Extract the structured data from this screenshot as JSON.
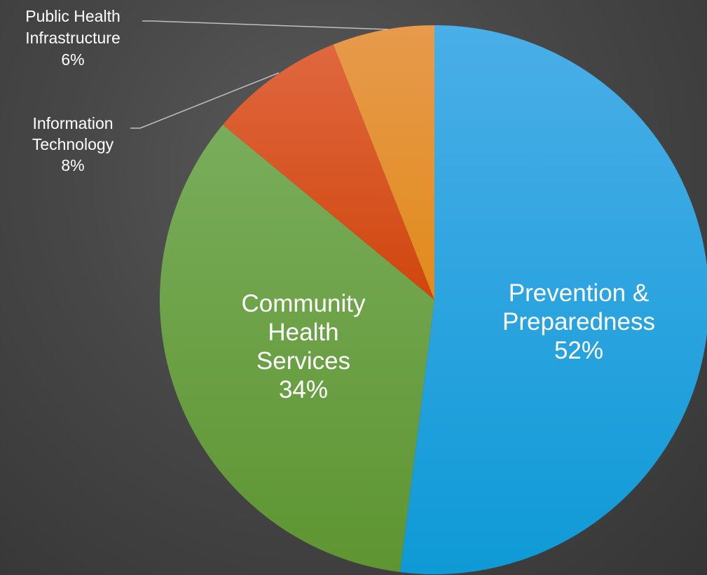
{
  "chart_data": {
    "type": "pie",
    "title": "",
    "start_angle_deg": 0,
    "direction": "clockwise",
    "slices": [
      {
        "lines": [
          "Prevention &",
          "Preparedness"
        ],
        "percent_label": "52%",
        "value": 52,
        "color_top": "#4aaee8",
        "color_bottom": "#0e9ad6"
      },
      {
        "lines": [
          "Community",
          "Health",
          "Services"
        ],
        "percent_label": "34%",
        "value": 34,
        "color_top": "#79ad5b",
        "color_bottom": "#5e9531"
      },
      {
        "lines": [
          "Information",
          "Technology"
        ],
        "percent_label": "8%",
        "value": 8,
        "color_top": "#e0673f",
        "color_bottom": "#d0460d"
      },
      {
        "lines": [
          "Public Health",
          "Infrastructure"
        ],
        "percent_label": "6%",
        "value": 6,
        "color_top": "#e79a4c",
        "color_bottom": "#e18b1b"
      }
    ],
    "legend": "none",
    "data_labels": true
  }
}
